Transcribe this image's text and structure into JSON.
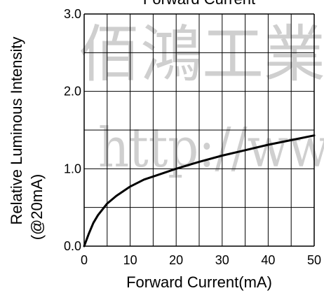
{
  "watermark": {
    "line1": "佰鴻工業",
    "line2": "http://ww"
  },
  "chart_data": {
    "type": "line",
    "title": "Forward Current",
    "xlabel": "Forward Current(mA)",
    "ylabel_line1": "Relative Luminous Intensity",
    "ylabel_line2": "(@20mA)",
    "xlim": [
      0,
      50
    ],
    "ylim": [
      0,
      3.0
    ],
    "x_ticks": [
      "0",
      "10",
      "20",
      "30",
      "40",
      "50"
    ],
    "y_ticks": [
      "0.0",
      "1.0",
      "2.0",
      "3.0"
    ],
    "grid": true,
    "series": [
      {
        "x": [
          0,
          1,
          2,
          3,
          5,
          7,
          10,
          13,
          15,
          20,
          25,
          30,
          35,
          40,
          45,
          50
        ],
        "y": [
          0,
          0.16,
          0.3,
          0.4,
          0.55,
          0.65,
          0.77,
          0.86,
          0.9,
          1.0,
          1.09,
          1.17,
          1.24,
          1.31,
          1.37,
          1.43
        ]
      }
    ]
  }
}
